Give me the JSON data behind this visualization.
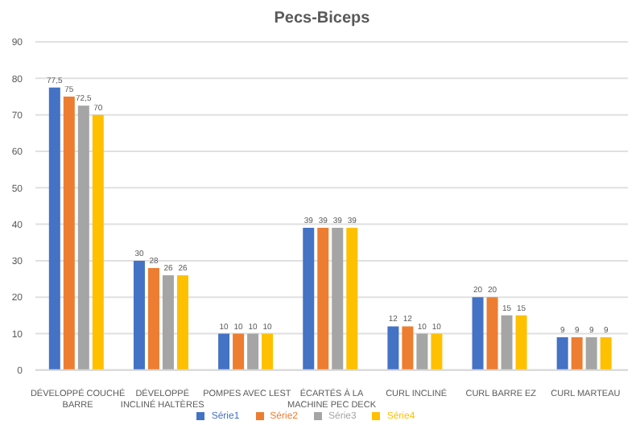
{
  "chart_data": {
    "type": "bar",
    "title": "Pecs-Biceps",
    "categories": [
      "DÉVELOPPÉ COUCHÉ BARRE",
      "DÉVELOPPÉ INCLINÉ HALTÈRES",
      "POMPES AVEC LEST",
      "ÉCARTÉS À LA MACHINE PEC DECK",
      "CURL INCLINÉ",
      "CURL BARRE EZ",
      "CURL MARTEAU"
    ],
    "series": [
      {
        "name": "Série1",
        "color": "#4472c4",
        "values": [
          77.5,
          30,
          10,
          39,
          12,
          20,
          9
        ],
        "value_labels": [
          "77,5",
          "30",
          "10",
          "39",
          "12",
          "20",
          "9"
        ]
      },
      {
        "name": "Série2",
        "color": "#ed7d31",
        "values": [
          75,
          28,
          10,
          39,
          12,
          20,
          9
        ],
        "value_labels": [
          "75",
          "28",
          "10",
          "39",
          "12",
          "20",
          "9"
        ]
      },
      {
        "name": "Série3",
        "color": "#a5a5a5",
        "values": [
          72.5,
          26,
          10,
          39,
          10,
          15,
          9
        ],
        "value_labels": [
          "72,5",
          "26",
          "10",
          "39",
          "10",
          "15",
          "9"
        ]
      },
      {
        "name": "Série4",
        "color": "#ffc000",
        "values": [
          70,
          26,
          10,
          39,
          10,
          15,
          9
        ],
        "value_labels": [
          "70",
          "26",
          "10",
          "39",
          "10",
          "15",
          "9"
        ]
      }
    ],
    "ylim": [
      0,
      90
    ],
    "yticks": [
      0,
      10,
      20,
      30,
      40,
      50,
      60,
      70,
      80,
      90
    ],
    "grid": "y",
    "legend": "bottom"
  }
}
